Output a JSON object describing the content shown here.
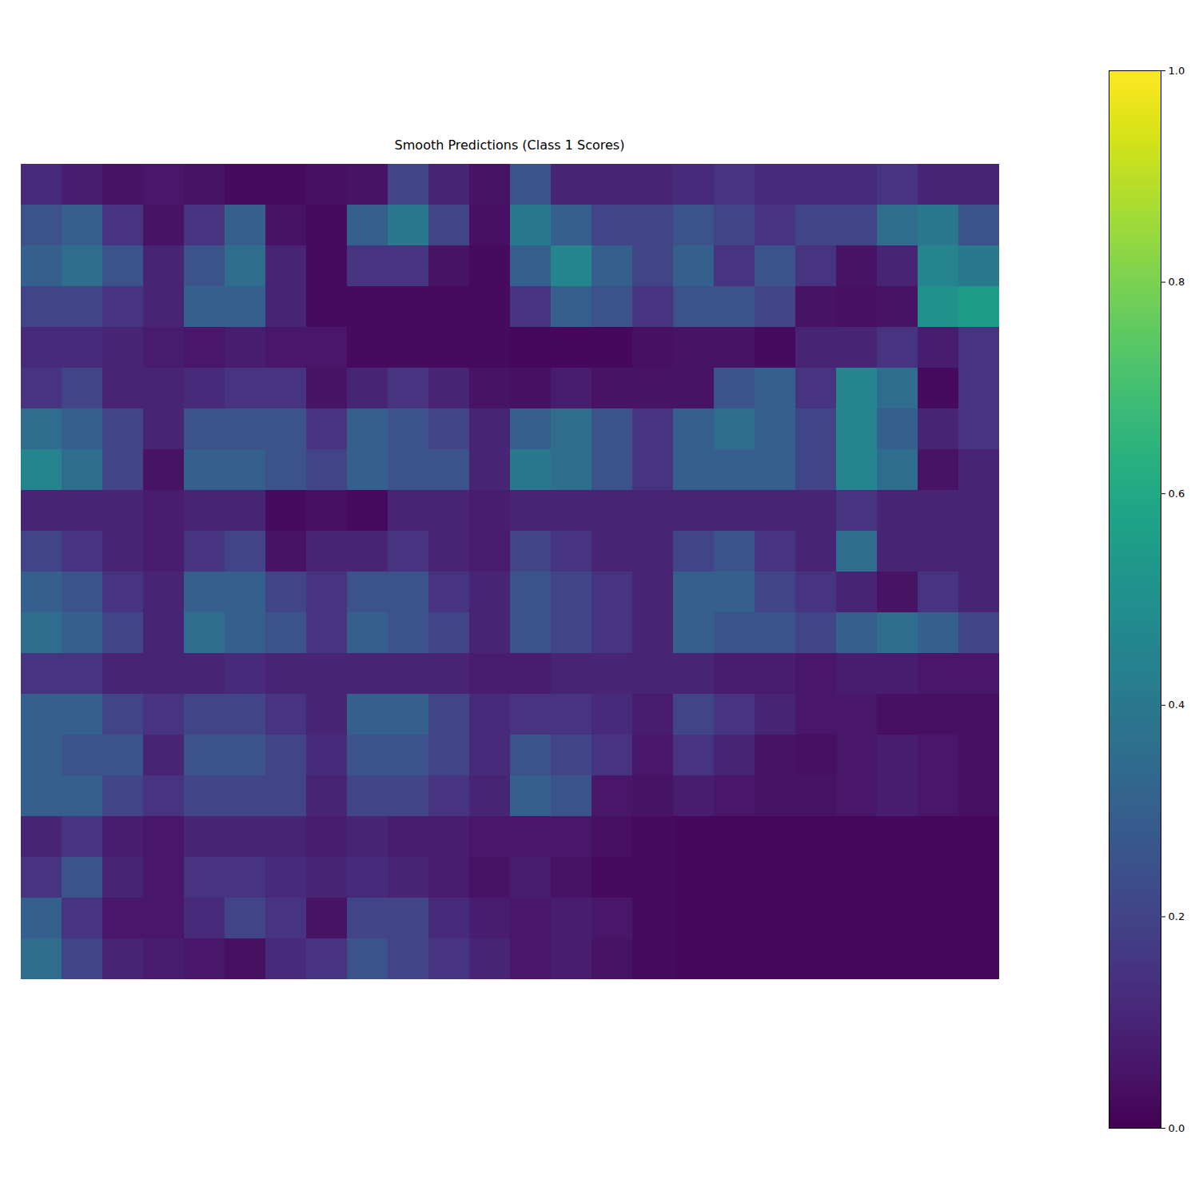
{
  "chart_data": {
    "type": "heatmap",
    "title": "Smooth Predictions (Class 1 Scores)",
    "color": "viridis",
    "tick_labels": false,
    "color_range": [
      0,
      1
    ],
    "color_ticks": [
      {
        "value": 0,
        "label": "0.0"
      },
      {
        "value": 0.2,
        "label": "0.2"
      },
      {
        "value": 0.4,
        "label": "0.4"
      },
      {
        "value": 0.6,
        "label": "0.6"
      },
      {
        "value": 0.8,
        "label": "0.8"
      },
      {
        "value": 1,
        "label": "1.0"
      }
    ],
    "cells": [
      [
        0.12,
        0.08,
        0.05,
        0.06,
        0.05,
        0.03,
        0.03,
        0.04,
        0.05,
        0.2,
        0.1,
        0.05,
        0.25,
        0.1,
        0.1,
        0.1,
        0.12,
        0.15,
        0.12,
        0.12,
        0.12,
        0.15,
        0.1,
        0.1
      ],
      [
        0.25,
        0.3,
        0.15,
        0.05,
        0.15,
        0.3,
        0.05,
        0.03,
        0.3,
        0.4,
        0.2,
        0.04,
        0.4,
        0.3,
        0.2,
        0.2,
        0.25,
        0.2,
        0.15,
        0.2,
        0.2,
        0.35,
        0.4,
        0.25
      ],
      [
        0.3,
        0.35,
        0.25,
        0.1,
        0.25,
        0.35,
        0.1,
        0.03,
        0.15,
        0.15,
        0.05,
        0.03,
        0.3,
        0.45,
        0.3,
        0.2,
        0.3,
        0.15,
        0.25,
        0.15,
        0.05,
        0.1,
        0.45,
        0.4
      ],
      [
        0.2,
        0.2,
        0.15,
        0.1,
        0.3,
        0.3,
        0.1,
        0.03,
        0.03,
        0.03,
        0.03,
        0.03,
        0.15,
        0.3,
        0.25,
        0.15,
        0.25,
        0.25,
        0.2,
        0.05,
        0.04,
        0.05,
        0.5,
        0.55
      ],
      [
        0.12,
        0.12,
        0.1,
        0.08,
        0.06,
        0.08,
        0.06,
        0.06,
        0.03,
        0.03,
        0.03,
        0.03,
        0.02,
        0.02,
        0.02,
        0.04,
        0.05,
        0.05,
        0.03,
        0.1,
        0.1,
        0.15,
        0.08,
        0.15
      ],
      [
        0.15,
        0.2,
        0.1,
        0.1,
        0.12,
        0.15,
        0.15,
        0.05,
        0.1,
        0.15,
        0.1,
        0.05,
        0.04,
        0.08,
        0.05,
        0.05,
        0.05,
        0.25,
        0.3,
        0.15,
        0.45,
        0.35,
        0.03,
        0.15
      ],
      [
        0.35,
        0.3,
        0.2,
        0.1,
        0.25,
        0.25,
        0.25,
        0.15,
        0.3,
        0.25,
        0.2,
        0.1,
        0.3,
        0.35,
        0.25,
        0.15,
        0.3,
        0.35,
        0.3,
        0.2,
        0.45,
        0.3,
        0.1,
        0.15
      ],
      [
        0.45,
        0.35,
        0.2,
        0.05,
        0.3,
        0.3,
        0.25,
        0.2,
        0.3,
        0.25,
        0.25,
        0.1,
        0.4,
        0.35,
        0.25,
        0.15,
        0.3,
        0.3,
        0.3,
        0.2,
        0.45,
        0.35,
        0.05,
        0.1
      ],
      [
        0.1,
        0.1,
        0.1,
        0.08,
        0.1,
        0.1,
        0.03,
        0.04,
        0.03,
        0.1,
        0.1,
        0.08,
        0.1,
        0.1,
        0.1,
        0.1,
        0.1,
        0.1,
        0.1,
        0.1,
        0.15,
        0.1,
        0.1,
        0.1
      ],
      [
        0.2,
        0.15,
        0.1,
        0.08,
        0.15,
        0.2,
        0.05,
        0.1,
        0.1,
        0.15,
        0.1,
        0.08,
        0.2,
        0.15,
        0.1,
        0.1,
        0.2,
        0.25,
        0.15,
        0.1,
        0.35,
        0.1,
        0.1,
        0.1
      ],
      [
        0.3,
        0.25,
        0.15,
        0.1,
        0.3,
        0.3,
        0.2,
        0.15,
        0.25,
        0.25,
        0.15,
        0.1,
        0.25,
        0.2,
        0.15,
        0.1,
        0.3,
        0.3,
        0.2,
        0.15,
        0.1,
        0.05,
        0.15,
        0.1
      ],
      [
        0.35,
        0.3,
        0.2,
        0.1,
        0.35,
        0.3,
        0.25,
        0.15,
        0.3,
        0.25,
        0.2,
        0.1,
        0.25,
        0.2,
        0.15,
        0.1,
        0.3,
        0.25,
        0.25,
        0.2,
        0.3,
        0.35,
        0.3,
        0.2
      ],
      [
        0.15,
        0.15,
        0.1,
        0.1,
        0.1,
        0.12,
        0.1,
        0.1,
        0.1,
        0.1,
        0.1,
        0.08,
        0.08,
        0.1,
        0.1,
        0.1,
        0.1,
        0.08,
        0.08,
        0.06,
        0.08,
        0.08,
        0.06,
        0.06
      ],
      [
        0.3,
        0.3,
        0.2,
        0.15,
        0.2,
        0.2,
        0.15,
        0.1,
        0.3,
        0.3,
        0.2,
        0.12,
        0.15,
        0.15,
        0.12,
        0.08,
        0.2,
        0.15,
        0.1,
        0.06,
        0.06,
        0.04,
        0.04,
        0.04
      ],
      [
        0.3,
        0.25,
        0.25,
        0.1,
        0.25,
        0.25,
        0.2,
        0.12,
        0.25,
        0.25,
        0.2,
        0.12,
        0.25,
        0.2,
        0.15,
        0.06,
        0.15,
        0.1,
        0.05,
        0.04,
        0.06,
        0.08,
        0.06,
        0.04
      ],
      [
        0.3,
        0.3,
        0.2,
        0.15,
        0.2,
        0.2,
        0.2,
        0.1,
        0.2,
        0.2,
        0.15,
        0.1,
        0.3,
        0.25,
        0.06,
        0.05,
        0.08,
        0.06,
        0.05,
        0.05,
        0.06,
        0.08,
        0.06,
        0.04
      ],
      [
        0.1,
        0.15,
        0.08,
        0.06,
        0.1,
        0.1,
        0.1,
        0.08,
        0.1,
        0.08,
        0.08,
        0.06,
        0.06,
        0.06,
        0.04,
        0.03,
        0.02,
        0.02,
        0.02,
        0.02,
        0.02,
        0.02,
        0.02,
        0.02
      ],
      [
        0.15,
        0.25,
        0.1,
        0.06,
        0.15,
        0.15,
        0.12,
        0.1,
        0.12,
        0.1,
        0.08,
        0.05,
        0.08,
        0.05,
        0.03,
        0.03,
        0.02,
        0.02,
        0.02,
        0.02,
        0.02,
        0.02,
        0.02,
        0.02
      ],
      [
        0.3,
        0.15,
        0.06,
        0.06,
        0.12,
        0.2,
        0.15,
        0.05,
        0.2,
        0.2,
        0.12,
        0.08,
        0.06,
        0.08,
        0.06,
        0.03,
        0.02,
        0.02,
        0.02,
        0.02,
        0.02,
        0.02,
        0.02,
        0.02
      ],
      [
        0.35,
        0.2,
        0.1,
        0.08,
        0.06,
        0.04,
        0.12,
        0.15,
        0.25,
        0.2,
        0.15,
        0.1,
        0.06,
        0.08,
        0.05,
        0.03,
        0.02,
        0.02,
        0.02,
        0.02,
        0.02,
        0.02,
        0.02,
        0.02
      ]
    ]
  }
}
